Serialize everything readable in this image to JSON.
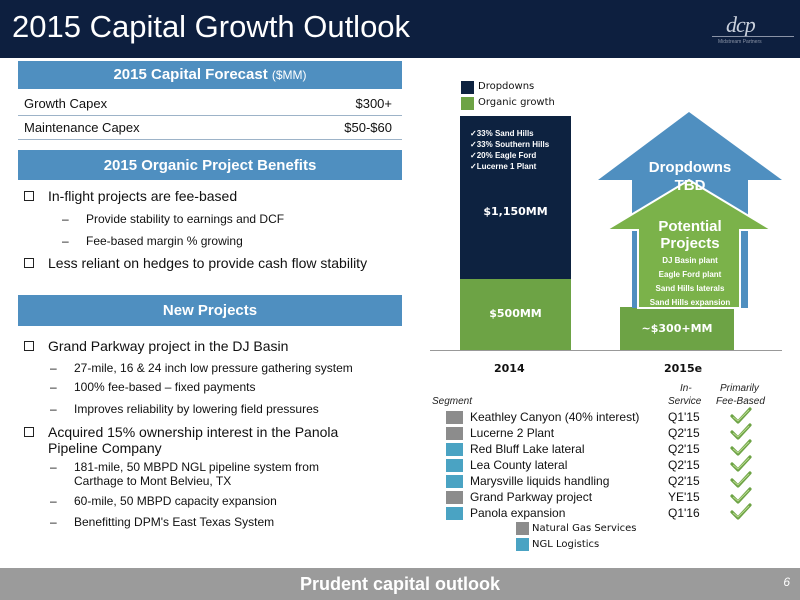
{
  "title": "2015 Capital Growth Outlook",
  "logo": {
    "text": "dcp",
    "subtext": "Midstream Partners"
  },
  "forecast": {
    "header": "2015 Capital Forecast",
    "unit": "($MM)",
    "rows": [
      {
        "label": "Growth Capex",
        "value": "$300+"
      },
      {
        "label": "Maintenance Capex",
        "value": "$50-$60"
      }
    ]
  },
  "benefits": {
    "header": "2015 Organic Project Benefits",
    "b1": "In-flight projects are fee-based",
    "b1_sub1": "Provide stability to earnings and DCF",
    "b1_sub2": "Fee-based margin % growing",
    "b2": "Less reliant on hedges to provide cash flow stability"
  },
  "new_projects": {
    "header": "New Projects",
    "b1": "Grand Parkway project in the DJ Basin",
    "b1_sub1": "27-mile, 16 & 24 inch low pressure gathering system",
    "b1_sub2": "100% fee-based – fixed payments",
    "b1_sub3": "Improves reliability by lowering field pressures",
    "b2_line1": "Acquired 15% ownership interest in the Panola",
    "b2_line2": "Pipeline Company",
    "b2_sub1_line1": "181-mile, 50 MBPD NGL pipeline system from",
    "b2_sub1_line2": "Carthage to Mont Belvieu, TX",
    "b2_sub2": "60-mile, 50 MBPD capacity expansion",
    "b2_sub3": "Benefitting DPM's East Texas System"
  },
  "chart_data": {
    "type": "bar",
    "categories": [
      "2014",
      "2015e"
    ],
    "series": [
      {
        "name": "Organic growth",
        "color": "#6da345",
        "values": [
          500,
          300
        ]
      },
      {
        "name": "Dropdowns",
        "color": "#0d2240",
        "values": [
          1150,
          null
        ]
      }
    ],
    "labels": {
      "organic_2014": "$500MM",
      "dropdowns_2014": "$1,150MM",
      "organic_2015": "~$300+MM"
    },
    "dropdown_checks": [
      "33% Sand Hills",
      "33% Southern Hills",
      "20% Eagle Ford",
      "Lucerne 1 Plant"
    ],
    "arrow_dropdowns": {
      "line1": "Dropdowns",
      "line2": "TBD",
      "color": "#4f8fc0"
    },
    "arrow_potential": {
      "line1": "Potential",
      "line2": "Projects",
      "items": [
        "DJ Basin plant",
        "Eagle Ford plant",
        "Sand Hills laterals",
        "Sand Hills expansion"
      ],
      "color": "#7bb24a"
    }
  },
  "segments": {
    "col_segment": "Segment",
    "col_service_1": "In-",
    "col_service_2": "Service",
    "col_fee_1": "Primarily",
    "col_fee_2": "Fee-Based",
    "rows": [
      {
        "name": "Keathley Canyon (40% interest)",
        "service": "Q1'15",
        "type": "gas"
      },
      {
        "name": "Lucerne 2 Plant",
        "service": "Q2'15",
        "type": "gas"
      },
      {
        "name": "Red Bluff Lake lateral",
        "service": "Q2'15",
        "type": "ngl"
      },
      {
        "name": "Lea County lateral",
        "service": "Q2'15",
        "type": "ngl"
      },
      {
        "name": "Marysville liquids handling",
        "service": "Q2'15",
        "type": "ngl"
      },
      {
        "name": "Grand Parkway project",
        "service": "YE'15",
        "type": "gas"
      },
      {
        "name": "Panola expansion",
        "service": "Q1'16",
        "type": "ngl"
      }
    ],
    "legend": [
      {
        "name": "Natural Gas Services",
        "color": "#8c8c8c"
      },
      {
        "name": "NGL Logistics",
        "color": "#4aa3c3"
      }
    ]
  },
  "footer": {
    "text": "Prudent capital outlook",
    "page": "6"
  }
}
